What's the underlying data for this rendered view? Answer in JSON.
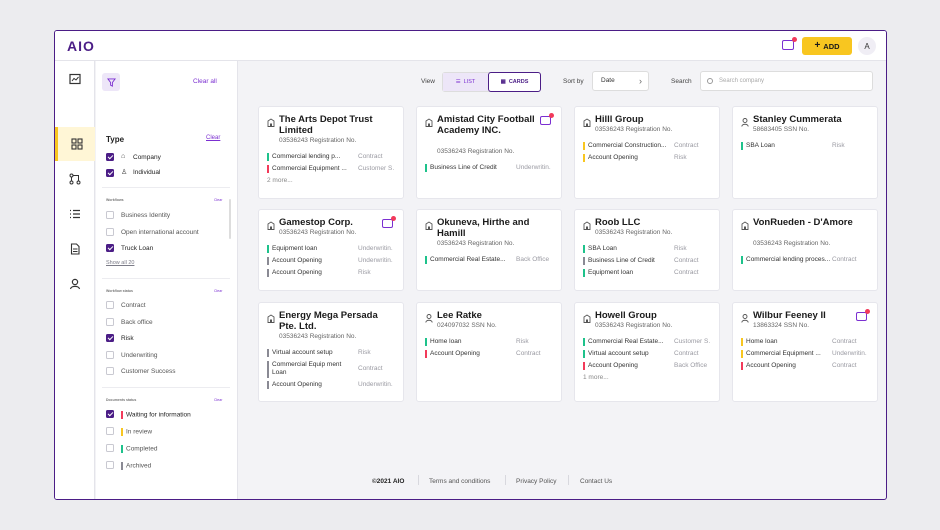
{
  "app": {
    "logo": "AIO"
  },
  "header": {
    "add_label": "ADD",
    "avatar_initial": "A"
  },
  "colors": {
    "brand": "#4b1d86",
    "accent": "#f8c620",
    "green": "#1ec28b",
    "red": "#f23a5a",
    "yellow": "#f8c620",
    "gray": "#8a8a94"
  },
  "nav": [
    {
      "icon": "dashboard-icon",
      "active": false
    },
    {
      "icon": "cards-grid-icon",
      "active": true
    },
    {
      "icon": "workflow-icon",
      "active": false
    },
    {
      "icon": "list-icon",
      "active": false
    },
    {
      "icon": "document-icon",
      "active": false
    },
    {
      "icon": "users-icon",
      "active": false
    }
  ],
  "filters": {
    "clear_all": "Clear all",
    "type": {
      "title": "Type",
      "clear": "Clear",
      "items": [
        {
          "label": "Company",
          "checked": true,
          "icon": "building-icon"
        },
        {
          "label": "Individual",
          "checked": true,
          "icon": "person-icon"
        }
      ]
    },
    "workflows": {
      "title": "Workflows",
      "clear": "Clear",
      "show_all": "Show all 20",
      "items": [
        {
          "label": "Business Identity",
          "checked": false
        },
        {
          "label": "Open international account",
          "checked": false
        },
        {
          "label": "Truck Loan",
          "checked": true
        }
      ]
    },
    "workflow_status": {
      "title": "Workflow status",
      "clear": "Clear",
      "items": [
        {
          "label": "Contract",
          "checked": false
        },
        {
          "label": "Back office",
          "checked": false
        },
        {
          "label": "Risk",
          "checked": true
        },
        {
          "label": "Underwriting",
          "checked": false
        },
        {
          "label": "Customer Success",
          "checked": false
        }
      ]
    },
    "documents_status": {
      "title": "Documents status",
      "clear": "Clear",
      "items": [
        {
          "label": "Waiting for information",
          "checked": true,
          "color": "red"
        },
        {
          "label": "In review",
          "checked": false,
          "color": "yellow"
        },
        {
          "label": "Completed",
          "checked": false,
          "color": "green"
        },
        {
          "label": "Archived",
          "checked": false,
          "color": "gray"
        }
      ]
    }
  },
  "toolbar": {
    "view_label": "View",
    "list_label": "LIST",
    "cards_label": "CARDS",
    "sort_label": "Sort by",
    "sort_value": "Date",
    "search_label": "Search",
    "search_placeholder": "Search company"
  },
  "cards": [
    {
      "name": "The Arts Depot Trust Limited",
      "reg": "03536243 Registration No.",
      "type": "company",
      "chat": false,
      "rows": [
        {
          "color": "green",
          "label": "Commercial lending p...",
          "status": "Contract"
        },
        {
          "color": "red",
          "label": "Commercial Equipment ...",
          "status": "Customer S."
        }
      ],
      "more": "2 more..."
    },
    {
      "name": "Amistad City Football Academy INC.",
      "reg": "03536243 Registration No.",
      "type": "company",
      "chat": true,
      "rows": [
        {
          "color": "green",
          "label": "Business Line of Credit",
          "status": "Underwritin."
        }
      ],
      "more": ""
    },
    {
      "name": "Hilll Group",
      "reg": "03536243 Registration No.",
      "type": "company",
      "chat": false,
      "rows": [
        {
          "color": "yellow",
          "label": "Commercial Construction...",
          "status": "Contract"
        },
        {
          "color": "yellow",
          "label": "Account Opening",
          "status": "Risk"
        }
      ],
      "more": ""
    },
    {
      "name": "Stanley Cummerata",
      "reg": "58683405 SSN No.",
      "type": "person",
      "chat": false,
      "rows": [
        {
          "color": "green",
          "label": "SBA Loan",
          "status": "Risk"
        }
      ],
      "more": ""
    },
    {
      "name": "Gamestop Corp.",
      "reg": "03536243 Registration No.",
      "type": "company",
      "chat": true,
      "rows": [
        {
          "color": "green",
          "label": "Equipment loan",
          "status": "Underwritin."
        },
        {
          "color": "gray",
          "label": "Account Opening",
          "status": "Underwritin."
        },
        {
          "color": "gray",
          "label": "Account Opening",
          "status": "Risk"
        }
      ],
      "more": ""
    },
    {
      "name": "Okuneva, Hirthe and Hamill",
      "reg": "03536243 Registration No.",
      "type": "company",
      "chat": false,
      "rows": [
        {
          "color": "green",
          "label": "Commercial Real Estate...",
          "status": "Back Office"
        }
      ],
      "more": ""
    },
    {
      "name": "Roob LLC",
      "reg": "03536243 Registration No.",
      "type": "company",
      "chat": false,
      "rows": [
        {
          "color": "green",
          "label": "SBA Loan",
          "status": "Risk"
        },
        {
          "color": "gray",
          "label": "Business Line of Credit",
          "status": "Contract"
        },
        {
          "color": "green",
          "label": "Equipment loan",
          "status": "Contract"
        }
      ],
      "more": ""
    },
    {
      "name": "VonRueden - D'Amore",
      "reg": "03536243 Registration No.",
      "type": "company",
      "chat": false,
      "rows": [
        {
          "color": "green",
          "label": "Commercial lending proces...",
          "status": "Contract"
        }
      ],
      "more": ""
    },
    {
      "name": "Energy Mega Persada Pte. Ltd.",
      "reg": "03536243 Registration No.",
      "type": "company",
      "chat": false,
      "rows": [
        {
          "color": "gray",
          "label": "Virtual account setup",
          "status": "Risk"
        },
        {
          "color": "gray",
          "label": "Commercial Equip ment Loan",
          "status": "Contract"
        },
        {
          "color": "gray",
          "label": "Account Opening",
          "status": "Underwritin."
        }
      ],
      "more": ""
    },
    {
      "name": "Lee Ratke",
      "reg": "024097032 SSN No.",
      "type": "person",
      "chat": false,
      "rows": [
        {
          "color": "green",
          "label": "Home loan",
          "status": "Risk"
        },
        {
          "color": "red",
          "label": "Account Opening",
          "status": "Contract"
        }
      ],
      "more": ""
    },
    {
      "name": "Howell Group",
      "reg": "03536243 Registration No.",
      "type": "company",
      "chat": false,
      "rows": [
        {
          "color": "green",
          "label": "Commercial Real Estate...",
          "status": "Customer S."
        },
        {
          "color": "green",
          "label": "Virtual account setup",
          "status": "Contract"
        },
        {
          "color": "red",
          "label": "Account Opening",
          "status": "Back Office"
        }
      ],
      "more": "1 more..."
    },
    {
      "name": "Wilbur Feeney II",
      "reg": "13863324 SSN No.",
      "type": "person",
      "chat": true,
      "rows": [
        {
          "color": "yellow",
          "label": "Home loan",
          "status": "Contract"
        },
        {
          "color": "yellow",
          "label": "Commercial Equipment ...",
          "status": "Underwritin."
        },
        {
          "color": "red",
          "label": "Account Opening",
          "status": "Contract"
        }
      ],
      "more": ""
    }
  ],
  "footer": {
    "copyright": "©2021 AIO",
    "terms": "Terms and conditions",
    "privacy": "Privacy Policy",
    "contact": "Contact Us"
  }
}
